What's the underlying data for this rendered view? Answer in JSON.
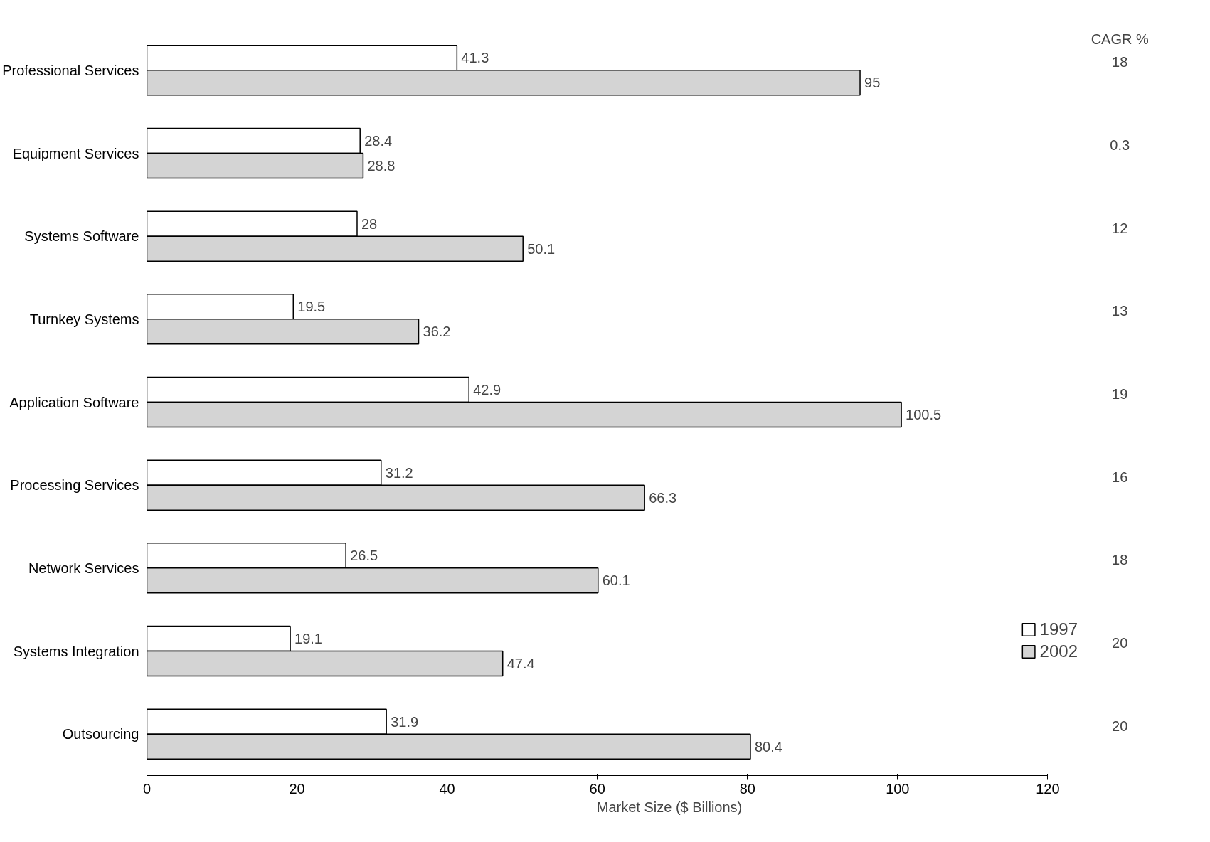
{
  "chart_data": {
    "type": "bar",
    "orientation": "horizontal",
    "xlabel": "Market Size ($ Billions)",
    "categories": [
      "Professional Services",
      "Equipment Services",
      "Systems Software",
      "Turnkey Systems",
      "Application Software",
      "Processing Services",
      "Network Services",
      "Systems Integration",
      "Outsourcing"
    ],
    "series": [
      {
        "name": "1997",
        "color": "#ffffff",
        "values": [
          41.3,
          28.4,
          28,
          19.5,
          42.9,
          31.2,
          26.5,
          19.1,
          31.9
        ]
      },
      {
        "name": "2002",
        "color": "#d4d4d4",
        "values": [
          95,
          28.8,
          50.1,
          36.2,
          100.5,
          66.3,
          60.1,
          47.4,
          80.4
        ]
      }
    ],
    "xlim": [
      0,
      120
    ],
    "xticks": [
      0,
      20,
      40,
      60,
      80,
      100,
      120
    ],
    "grid": false,
    "legend": "bottom right",
    "data_labels": true,
    "annotations": [
      "CAGR %",
      "18",
      "0.3",
      "12",
      "13",
      "19",
      "16",
      "18",
      "20",
      "20"
    ]
  }
}
